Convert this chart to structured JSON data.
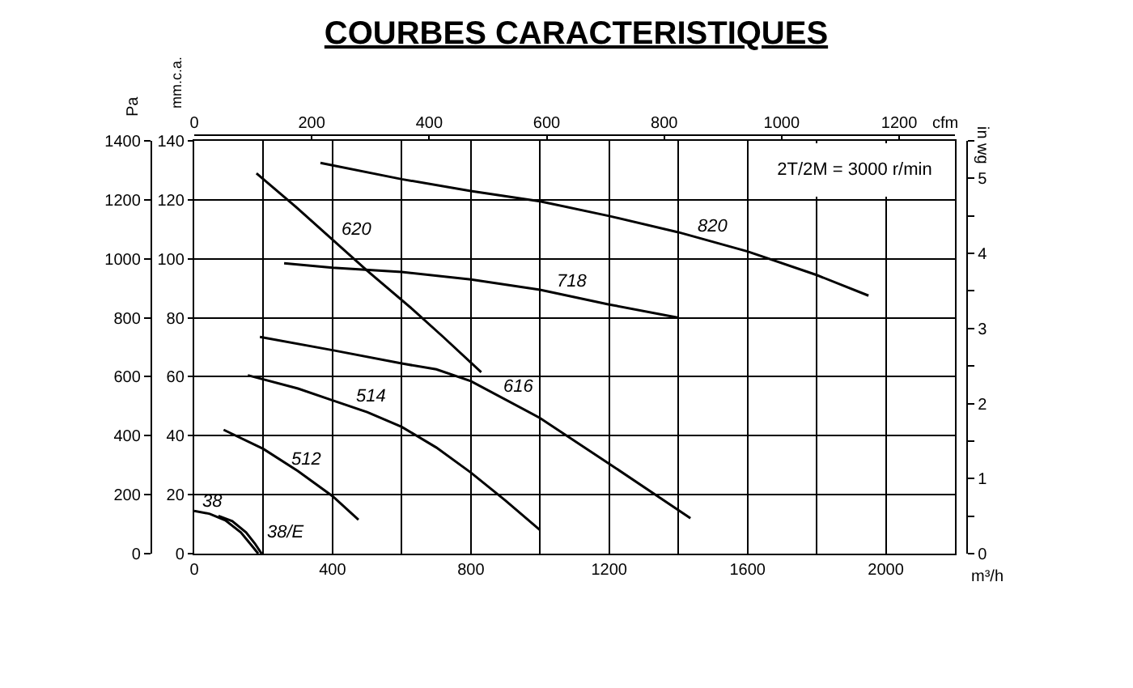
{
  "chart_data": {
    "type": "line",
    "title": "COURBES CARACTERISTIQUES",
    "xlabel": "m³/h",
    "ylabel": "Pa",
    "y2label": "mm.c.a.",
    "y3label": "in wg",
    "x2label": "cfm",
    "xlim": [
      0,
      2200
    ],
    "xticks": [
      0,
      {
        "value": 200,
        "label": null
      },
      400,
      {
        "value": 600,
        "label": null
      },
      800,
      {
        "value": 1000,
        "label": null
      },
      1200,
      {
        "value": 1400,
        "label": null
      },
      1600,
      {
        "value": 1800,
        "label": null
      },
      2000
    ],
    "ylim": [
      0,
      1400
    ],
    "yticks": [
      0,
      200,
      400,
      600,
      800,
      1000,
      1200,
      1400
    ],
    "y2lim": [
      0,
      140
    ],
    "y2ticks": [
      0,
      20,
      40,
      60,
      80,
      100,
      120,
      140
    ],
    "y3lim": [
      0,
      5.5
    ],
    "y3ticks": [
      0,
      {
        "value": 0.5,
        "label": null
      },
      1,
      {
        "value": 1.5,
        "label": null
      },
      2,
      {
        "value": 2.5,
        "label": null
      },
      3,
      {
        "value": 3.5,
        "label": null
      },
      4,
      {
        "value": 4.5,
        "label": null
      },
      5,
      {
        "value": 5.5,
        "label": null
      }
    ],
    "x2lim": [
      0,
      1295
    ],
    "x2ticks": [
      0,
      200,
      400,
      600,
      800,
      1000,
      1200
    ],
    "grid": true,
    "annotations": [
      "2T/2M = 3000 r/min"
    ],
    "series": [
      {
        "name": "38",
        "color": "#000000",
        "x": [
          0,
          45,
          90,
          135,
          170,
          185
        ],
        "values": [
          145,
          135,
          113,
          72,
          22,
          0
        ]
      },
      {
        "name": "38/E",
        "color": "#000000",
        "x": [
          70,
          110,
          150,
          175,
          195
        ],
        "values": [
          128,
          110,
          72,
          35,
          0
        ]
      },
      {
        "name": "512",
        "color": "#000000",
        "x": [
          85,
          200,
          300,
          400,
          475
        ],
        "values": [
          420,
          355,
          280,
          195,
          115
        ]
      },
      {
        "name": "514",
        "color": "#000000",
        "x": [
          155,
          300,
          400,
          500,
          600,
          700,
          800,
          900,
          1000
        ],
        "values": [
          605,
          560,
          520,
          480,
          430,
          360,
          275,
          180,
          80
        ]
      },
      {
        "name": "616",
        "color": "#000000",
        "x": [
          190,
          400,
          600,
          700,
          800,
          1000,
          1200,
          1435
        ],
        "values": [
          735,
          690,
          645,
          625,
          585,
          460,
          305,
          120
        ]
      },
      {
        "name": "620",
        "color": "#000000",
        "x": [
          180,
          300,
          400,
          500,
          630,
          720,
          830
        ],
        "values": [
          1290,
          1170,
          1065,
          960,
          830,
          735,
          615
        ]
      },
      {
        "name": "718",
        "color": "#000000",
        "x": [
          260,
          400,
          600,
          800,
          1000,
          1200,
          1400
        ],
        "values": [
          985,
          970,
          955,
          930,
          895,
          845,
          800
        ]
      },
      {
        "name": "820",
        "color": "#000000",
        "x": [
          365,
          600,
          800,
          1000,
          1200,
          1400,
          1600,
          1800,
          1950
        ],
        "values": [
          1325,
          1270,
          1230,
          1195,
          1145,
          1090,
          1025,
          945,
          875
        ]
      }
    ]
  }
}
